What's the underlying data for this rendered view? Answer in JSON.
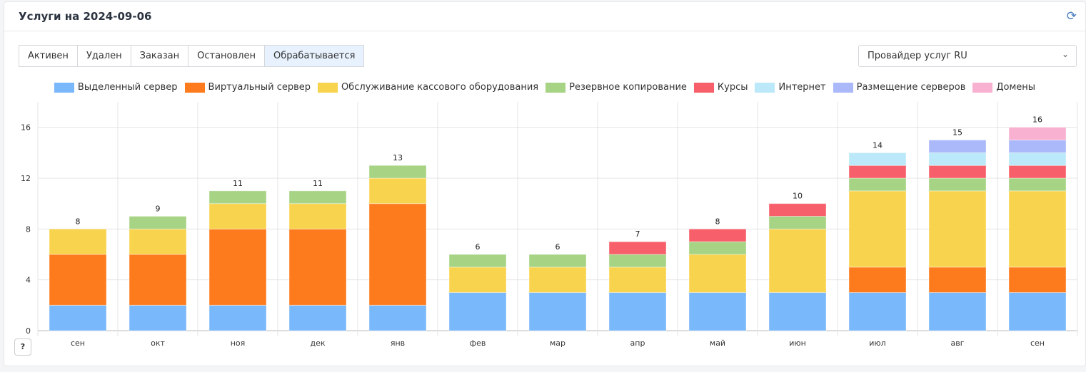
{
  "header": {
    "title": "Услуги на 2024-09-06",
    "refresh_icon": "refresh-icon"
  },
  "tabs": [
    {
      "label": "Активен"
    },
    {
      "label": "Удален"
    },
    {
      "label": "Заказан"
    },
    {
      "label": "Остановлен"
    },
    {
      "label": "Обрабатывается",
      "active": true
    }
  ],
  "provider_select": {
    "value": "Провайдер услуг RU"
  },
  "help": {
    "label": "?"
  },
  "chart_data": {
    "type": "bar",
    "stacked": true,
    "categories": [
      "сен",
      "окт",
      "ноя",
      "дек",
      "янв",
      "фев",
      "мар",
      "апр",
      "май",
      "июн",
      "июл",
      "авг",
      "сен"
    ],
    "yticks": [
      0,
      4,
      8,
      12,
      16
    ],
    "ylim": [
      0,
      18
    ],
    "grid": true,
    "legend_position": "top",
    "totals": [
      8,
      9,
      11,
      11,
      13,
      6,
      6,
      7,
      8,
      10,
      14,
      15,
      16
    ],
    "series": [
      {
        "name": "Выделенный сервер",
        "color": "#7ab8fc",
        "values": [
          2,
          2,
          2,
          2,
          2,
          3,
          3,
          3,
          3,
          3,
          3,
          3,
          3
        ]
      },
      {
        "name": "Виртуальный сервер",
        "color": "#fd7b1c",
        "values": [
          4,
          4,
          6,
          6,
          8,
          0,
          0,
          0,
          0,
          0,
          2,
          2,
          2
        ]
      },
      {
        "name": "Обслуживание кассового оборудования",
        "color": "#f8d34d",
        "values": [
          2,
          2,
          2,
          2,
          2,
          2,
          2,
          2,
          3,
          5,
          6,
          6,
          6
        ]
      },
      {
        "name": "Резервное копирование",
        "color": "#a7d384",
        "values": [
          0,
          1,
          1,
          1,
          1,
          1,
          1,
          1,
          1,
          1,
          1,
          1,
          1
        ]
      },
      {
        "name": "Курсы",
        "color": "#f7606b",
        "values": [
          0,
          0,
          0,
          0,
          0,
          0,
          0,
          1,
          1,
          1,
          1,
          1,
          1
        ]
      },
      {
        "name": "Интернет",
        "color": "#bbe9f9",
        "values": [
          0,
          0,
          0,
          0,
          0,
          0,
          0,
          0,
          0,
          0,
          1,
          1,
          1
        ]
      },
      {
        "name": "Размещение серверов",
        "color": "#abb9fb",
        "values": [
          0,
          0,
          0,
          0,
          0,
          0,
          0,
          0,
          0,
          0,
          0,
          1,
          1
        ]
      },
      {
        "name": "Домены",
        "color": "#f9b1d1",
        "values": [
          0,
          0,
          0,
          0,
          0,
          0,
          0,
          0,
          0,
          0,
          0,
          0,
          1
        ]
      }
    ]
  }
}
